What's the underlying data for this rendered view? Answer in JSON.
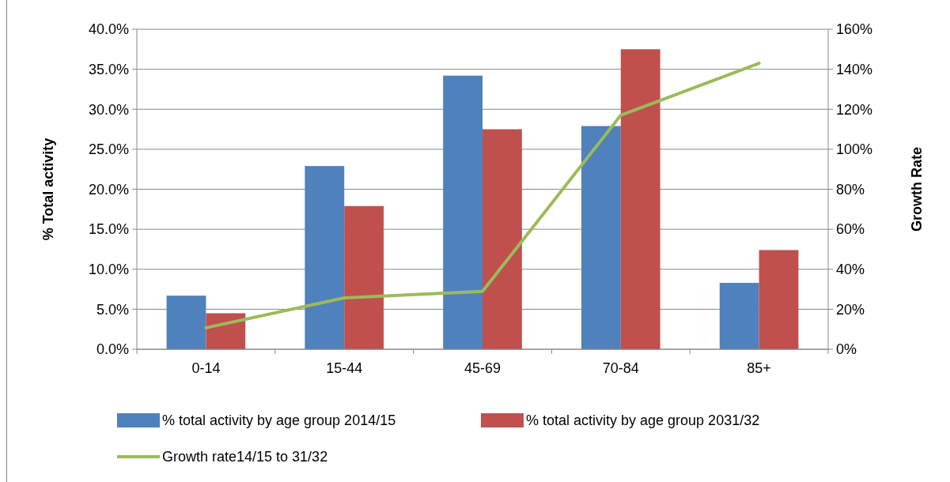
{
  "chart_data": {
    "type": "bar",
    "ylabel": "% Total activity",
    "y2label": "Growth Rate",
    "categories": [
      "0-14",
      "15-44",
      "45-69",
      "70-84",
      "85+"
    ],
    "series": [
      {
        "name": "% total activity by age group 2014/15",
        "color": "#4f81bd",
        "values": [
          6.7,
          22.9,
          34.2,
          27.9,
          8.3
        ]
      },
      {
        "name": "% total activity by age group 2031/32",
        "color": "#c0504d",
        "values": [
          4.5,
          17.9,
          27.5,
          37.5,
          12.4
        ]
      },
      {
        "name": "Growth rate14/15 to 31/32",
        "type": "line",
        "axis": "y2",
        "color": "#9bbb59",
        "values": [
          10.7,
          25.7,
          28.9,
          117,
          143
        ]
      }
    ],
    "ylim": [
      0,
      40
    ],
    "yticks": [
      {
        "value": 0,
        "label": "0.0%"
      },
      {
        "value": 5,
        "label": "5.0%"
      },
      {
        "value": 10,
        "label": "10.0%"
      },
      {
        "value": 15,
        "label": "15.0%"
      },
      {
        "value": 20,
        "label": "20.0%"
      },
      {
        "value": 25,
        "label": "25.0%"
      },
      {
        "value": 30,
        "label": "30.0%"
      },
      {
        "value": 35,
        "label": "35.0%"
      },
      {
        "value": 40,
        "label": "40.0%"
      }
    ],
    "y2lim": [
      0,
      160
    ],
    "y2ticks": [
      {
        "value": 0,
        "label": "0%"
      },
      {
        "value": 20,
        "label": "20%"
      },
      {
        "value": 40,
        "label": "40%"
      },
      {
        "value": 60,
        "label": "60%"
      },
      {
        "value": 80,
        "label": "80%"
      },
      {
        "value": 100,
        "label": "100%"
      },
      {
        "value": 120,
        "label": "120%"
      },
      {
        "value": 140,
        "label": "140%"
      },
      {
        "value": 160,
        "label": "160%"
      }
    ],
    "grid": "y",
    "legend": "bottom",
    "marker": "none"
  }
}
